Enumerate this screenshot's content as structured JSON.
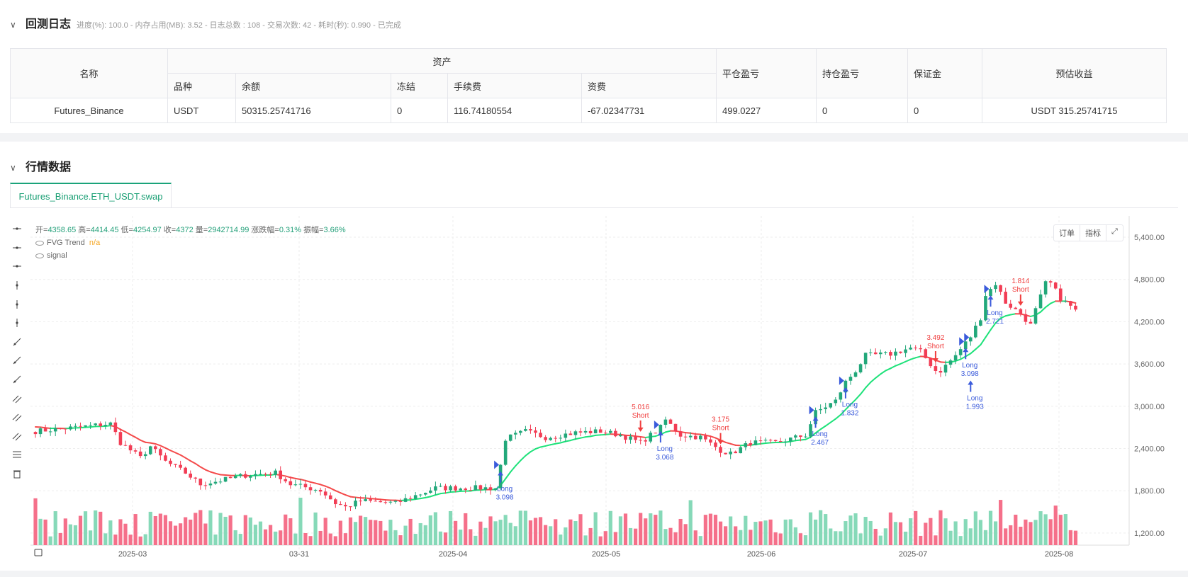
{
  "log": {
    "title": "回测日志",
    "summary": "进度(%): 100.0  - 内存占用(MB): 3.52 - 日志总数 : 108 - 交易次数:  42 - 耗时(秒): 0.990 - 已完成"
  },
  "table": {
    "h_name": "名称",
    "h_assets": "资产",
    "h_close_pnl": "平仓盈亏",
    "h_pos_pnl": "持仓盈亏",
    "h_margin": "保证金",
    "h_est": "预估收益",
    "sub": [
      "品种",
      "余额",
      "冻结",
      "手续费",
      "资费"
    ],
    "row": {
      "name": "Futures_Binance",
      "symbol": "USDT",
      "balance": "50315.25741716",
      "frozen": "0",
      "fee": "116.74180554",
      "funding": "-67.02347731",
      "close_pnl": "499.0227",
      "pos_pnl": "0",
      "margin": "0",
      "est": "USDT 315.25741715"
    }
  },
  "market": {
    "title": "行情数据",
    "tab": "Futures_Binance.ETH_USDT.swap"
  },
  "legend": {
    "ohlc_labels": [
      "开=",
      "高=",
      "低=",
      "收=",
      "量=",
      "涨跌幅=",
      "振幅="
    ],
    "ohlc_values": [
      "4358.65",
      "4414.45",
      "4254.97",
      "4372",
      "2942714.99",
      "0.31%",
      "3.66%"
    ],
    "trend": "FVG Trend",
    "trend_value": "n/a",
    "signal": "signal"
  },
  "chart_buttons": {
    "orders": "订单",
    "indicators": "指标",
    "fullscreen": "⤢"
  },
  "toolbar_icons": [
    "horizontal-line-icon",
    "horizontal-ray-icon",
    "line-segment-icon",
    "vertical-line-icon",
    "vertical-segment-icon",
    "vertical-ray-icon",
    "trend-line-icon",
    "ray-icon",
    "arrow-line-icon",
    "price-range-icon",
    "parallel-channel-icon",
    "multi-channel-icon",
    "fib-lines-icon",
    "delete-icon"
  ],
  "colors": {
    "up": "#22a87a",
    "down": "#f23d55",
    "trend_up": "#1ee27a",
    "trend_down": "#f44a4a",
    "vol_up": "#86d9b8",
    "vol_down": "#f5708a",
    "signal_long": "#3b5bdb",
    "signal_short": "#f03e3e"
  },
  "chart_data": {
    "type": "candlestick",
    "price_ticks": [
      "5,400.00",
      "4,800.00",
      "4,200.00",
      "3,600.00",
      "3,000.00",
      "2,400.00",
      "1,800.00",
      "1,200.00"
    ],
    "ylim": [
      1200,
      5400
    ],
    "date_ticks": [
      "2025-03",
      "03-31",
      "2025-04",
      "2025-05",
      "2025-06",
      "2025-07",
      "2025-08"
    ],
    "candle_count": 209,
    "close_path": [
      [
        0,
        2645
      ],
      [
        8,
        2699
      ],
      [
        15,
        2753
      ],
      [
        17,
        2484
      ],
      [
        21,
        2269
      ],
      [
        23,
        2430
      ],
      [
        26,
        2215
      ],
      [
        30,
        2054
      ],
      [
        33,
        1892
      ],
      [
        37,
        1946
      ],
      [
        42,
        2021
      ],
      [
        48,
        2054
      ],
      [
        51,
        1892
      ],
      [
        57,
        1806
      ],
      [
        60,
        1624
      ],
      [
        62,
        1570
      ],
      [
        65,
        1656
      ],
      [
        72,
        1624
      ],
      [
        76,
        1731
      ],
      [
        80,
        1839
      ],
      [
        86,
        1839
      ],
      [
        92,
        1839
      ],
      [
        93,
        2161
      ],
      [
        94,
        2538
      ],
      [
        98,
        2645
      ],
      [
        102,
        2559
      ],
      [
        108,
        2624
      ],
      [
        113,
        2645
      ],
      [
        117,
        2591
      ],
      [
        121,
        2484
      ],
      [
        125,
        2699
      ],
      [
        126,
        2806
      ],
      [
        129,
        2591
      ],
      [
        133,
        2559
      ],
      [
        137,
        2376
      ],
      [
        139,
        2323
      ],
      [
        143,
        2484
      ],
      [
        148,
        2484
      ],
      [
        154,
        2591
      ],
      [
        156,
        2914
      ],
      [
        160,
        3075
      ],
      [
        162,
        3344
      ],
      [
        164,
        3505
      ],
      [
        166,
        3720
      ],
      [
        171,
        3742
      ],
      [
        175,
        3828
      ],
      [
        177,
        3774
      ],
      [
        180,
        3505
      ],
      [
        181,
        3505
      ],
      [
        184,
        3720
      ],
      [
        187,
        3989
      ],
      [
        189,
        4258
      ],
      [
        190,
        4581
      ],
      [
        192,
        4742
      ],
      [
        194,
        4473
      ],
      [
        197,
        4312
      ],
      [
        199,
        4151
      ],
      [
        200,
        4366
      ],
      [
        202,
        4742
      ],
      [
        203,
        4742
      ],
      [
        205,
        4527
      ],
      [
        207,
        4419
      ],
      [
        208,
        4372
      ]
    ],
    "signals": [
      {
        "i": 93,
        "type": "Long",
        "value": "3.098"
      },
      {
        "i": 121,
        "type": "Short",
        "value": "5.016"
      },
      {
        "i": 125,
        "type": "Long",
        "value": "3.068"
      },
      {
        "i": 137,
        "type": "Short",
        "value": "3.175"
      },
      {
        "i": 156,
        "type": "Long",
        "value": "2.467"
      },
      {
        "i": 162,
        "type": "Long",
        "value": "1.832"
      },
      {
        "i": 180,
        "type": "Short",
        "value": "3.492"
      },
      {
        "i": 186,
        "type": "Long",
        "value": "3.098"
      },
      {
        "i": 187,
        "type": "Long",
        "value": "1.993"
      },
      {
        "i": 191,
        "type": "Long",
        "value": "2.721"
      },
      {
        "i": 197,
        "type": "Short",
        "value": "1.814"
      }
    ],
    "series": [
      {
        "name": "FVG Trend"
      },
      {
        "name": "signal"
      }
    ]
  }
}
